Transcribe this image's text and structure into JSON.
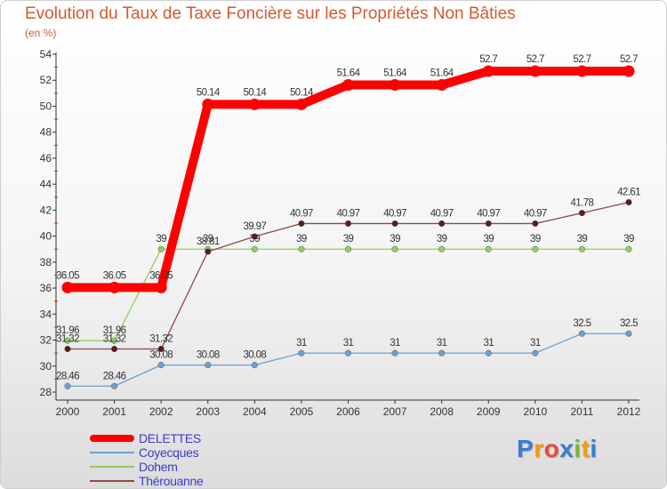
{
  "title": "Evolution du Taux de Taxe Foncière sur les Propriétés Non Bâties",
  "unit": "(en %)",
  "brand": "Proxiti",
  "chart_data": {
    "type": "line",
    "categories": [
      "2000",
      "2001",
      "2002",
      "2003",
      "2004",
      "2005",
      "2006",
      "2007",
      "2008",
      "2009",
      "2010",
      "2011",
      "2012"
    ],
    "ylim": [
      28,
      54
    ],
    "yticks": [
      28,
      30,
      32,
      34,
      36,
      38,
      40,
      42,
      44,
      46,
      48,
      50,
      52,
      54
    ],
    "grid": false,
    "series": [
      {
        "name": "DELETTES",
        "color": "#ff0000",
        "values": [
          36.05,
          36.05,
          36.05,
          50.14,
          50.14,
          50.14,
          51.64,
          51.64,
          51.64,
          52.7,
          52.7,
          52.7,
          52.7
        ],
        "labels": [
          "36.05",
          "36.05",
          "36.05",
          "50.14",
          "50.14",
          "50.14",
          "51.64",
          "51.64",
          "51.64",
          "52.7",
          "52.7",
          "52.7",
          "52.7"
        ]
      },
      {
        "name": "Coyecques",
        "color": "#6e9fd0",
        "values": [
          28.46,
          28.46,
          30.08,
          30.08,
          30.08,
          31,
          31,
          31,
          31,
          31,
          31,
          32.5,
          32.5
        ],
        "labels": [
          "28.46",
          "28.46",
          "30.08",
          "30.08",
          "30.08",
          "31",
          "31",
          "31",
          "31",
          "31",
          "31",
          "32.5",
          "32.5"
        ]
      },
      {
        "name": "Dohem",
        "color": "#90d060",
        "values": [
          31.96,
          31.96,
          39,
          39,
          39,
          39,
          39,
          39,
          39,
          39,
          39,
          39,
          39
        ],
        "labels": [
          "31.96",
          "31.96",
          "39",
          "39",
          "39",
          "39",
          "39",
          "39",
          "39",
          "39",
          "39",
          "39",
          "39"
        ]
      },
      {
        "name": "Thérouanne",
        "color": "#8a4a4a",
        "values": [
          31.32,
          31.32,
          31.32,
          38.81,
          39.97,
          40.97,
          40.97,
          40.97,
          40.97,
          40.97,
          40.97,
          41.78,
          42.61
        ],
        "labels": [
          "31.32",
          "31.32",
          "31.32",
          "38.81",
          "39.97",
          "40.97",
          "40.97",
          "40.97",
          "40.97",
          "40.97",
          "40.97",
          "41.78",
          "42.61"
        ]
      }
    ]
  },
  "legend": [
    {
      "name": "DELETTES"
    },
    {
      "name": "Coyecques"
    },
    {
      "name": "Dohem"
    },
    {
      "name": "Thérouanne"
    }
  ]
}
